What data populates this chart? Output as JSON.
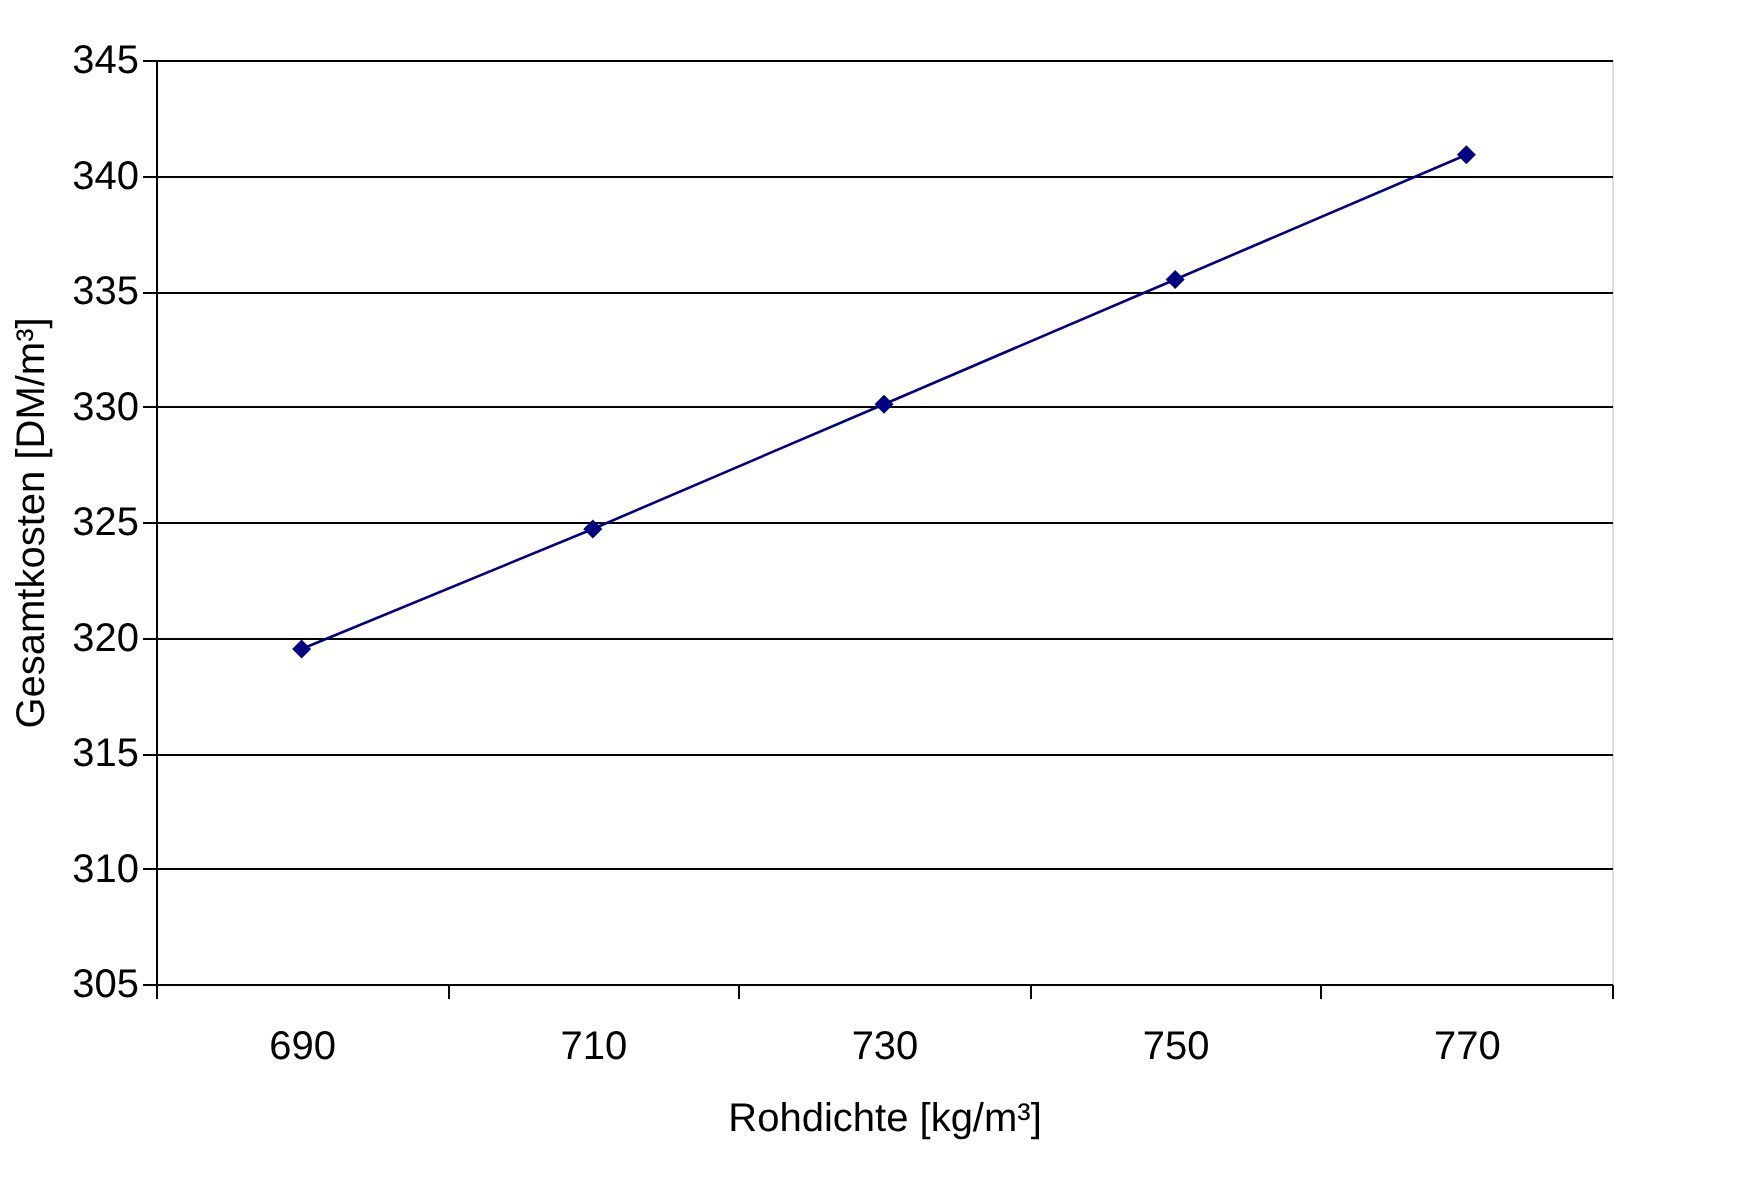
{
  "chart_data": {
    "type": "line",
    "xlabel": "Rohdichte [kg/m³]",
    "ylabel": "Gesamtkosten [DM/m³]",
    "categories": [
      "690",
      "710",
      "730",
      "750",
      "770"
    ],
    "series": [
      {
        "color": "#000080",
        "values": [
          319.5,
          324.7,
          330.1,
          335.5,
          340.9
        ]
      }
    ],
    "ylim": [
      305,
      345
    ],
    "yticks": [
      305,
      310,
      315,
      320,
      325,
      330,
      335,
      340,
      345
    ],
    "grid": "y",
    "marker": "diamond",
    "line_style": "solid"
  }
}
